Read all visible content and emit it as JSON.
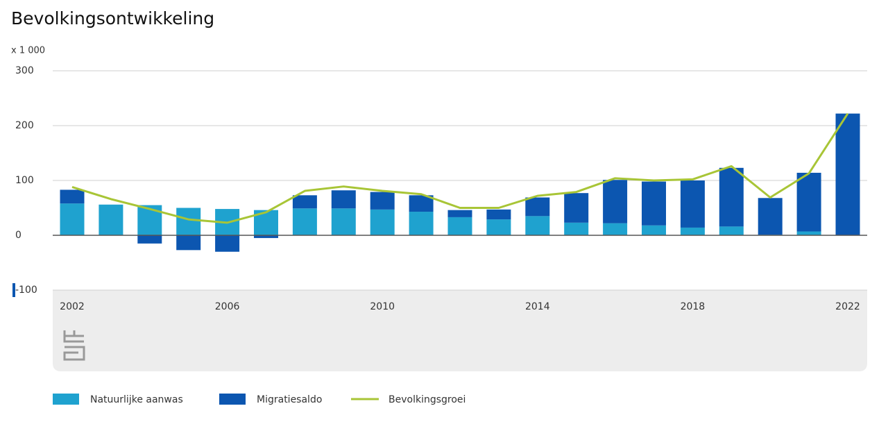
{
  "chart_data": {
    "type": "stacked-bar-line",
    "title": "Bevolkingsontwikkeling",
    "unit_label": "x 1 000",
    "categories": [
      "2002",
      null,
      null,
      null,
      "2006",
      null,
      null,
      null,
      "2010",
      null,
      null,
      null,
      "2014",
      null,
      null,
      null,
      "2018",
      null,
      null,
      null,
      "2022"
    ],
    "series": [
      {
        "name": "Natuurlijke aanwas",
        "type": "bar",
        "color": "#1fa2cf",
        "values": [
          58,
          56,
          55,
          50,
          48,
          46,
          49,
          49,
          47,
          43,
          33,
          29,
          35,
          23,
          22,
          18,
          14,
          16,
          1,
          7,
          0
        ]
      },
      {
        "name": "Migratiesaldo",
        "type": "bar",
        "color": "#0c56b0",
        "values": [
          25,
          0,
          -15,
          -27,
          -30,
          -5,
          24,
          33,
          32,
          30,
          13,
          18,
          34,
          54,
          79,
          80,
          86,
          107,
          67,
          107,
          222
        ]
      },
      {
        "name": "Bevolkingsgroei",
        "type": "line",
        "color": "#a8c536",
        "values": [
          88,
          66,
          48,
          29,
          23,
          42,
          81,
          89,
          81,
          75,
          50,
          50,
          72,
          79,
          104,
          100,
          102,
          126,
          69,
          113,
          222
        ]
      }
    ],
    "ylim": [
      -100,
      300
    ],
    "yticks": [
      -100,
      0,
      100,
      200,
      300
    ],
    "grid": true,
    "legend": "bottom"
  }
}
